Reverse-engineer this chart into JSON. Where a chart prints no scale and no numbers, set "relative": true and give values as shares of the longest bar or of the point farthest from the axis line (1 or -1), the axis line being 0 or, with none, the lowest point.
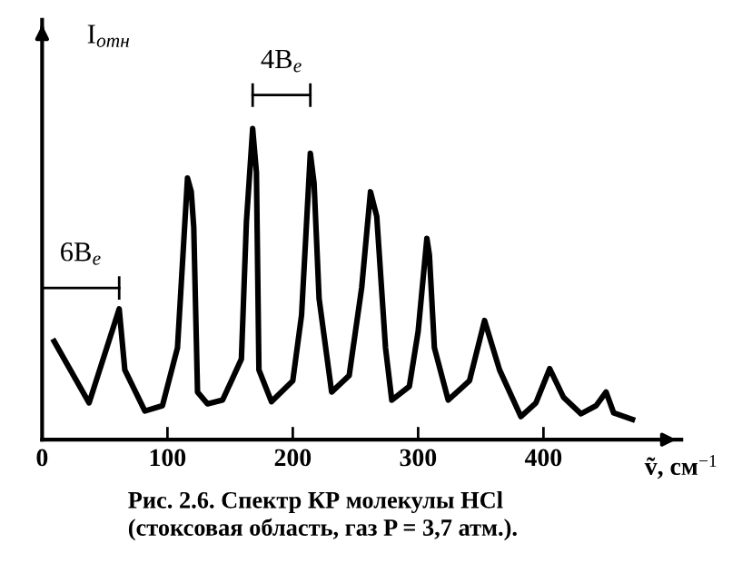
{
  "chart_data": {
    "type": "line",
    "relative": true,
    "xlabel": "ṽ, см$^{−1}$",
    "ylabel": "I$_{отн}$",
    "x": [
      9.6,
      37.5,
      61.5,
      66,
      82,
      96,
      108,
      116,
      119,
      121,
      124,
      132,
      144,
      159,
      163,
      168,
      171,
      173,
      183,
      200,
      207,
      214,
      217,
      221,
      231,
      245,
      255,
      262,
      267,
      274,
      279,
      293,
      300,
      307,
      309,
      313,
      324,
      341,
      353,
      365,
      382,
      394,
      405,
      416,
      430,
      442,
      450,
      456,
      471
    ],
    "series": [
      {
        "color": "#000000",
        "values": [
          0.316,
          0.118,
          0.42,
          0.224,
          0.092,
          0.109,
          0.295,
          0.841,
          0.797,
          0.683,
          0.153,
          0.115,
          0.127,
          0.259,
          0.7,
          1.0,
          0.859,
          0.224,
          0.122,
          0.189,
          0.4,
          0.921,
          0.824,
          0.453,
          0.153,
          0.206,
          0.489,
          0.797,
          0.718,
          0.295,
          0.127,
          0.171,
          0.347,
          0.647,
          0.594,
          0.295,
          0.127,
          0.189,
          0.383,
          0.224,
          0.074,
          0.118,
          0.228,
          0.136,
          0.083,
          0.109,
          0.153,
          0.086,
          0.065
        ]
      }
    ],
    "xlim": [
      0,
      510
    ],
    "xticks": [
      0,
      100,
      200,
      300,
      400
    ],
    "tick_labels": "x",
    "grid": false,
    "marker": "none",
    "line_style": "solid",
    "annotations": [
      "6B$_{e}$",
      "4B$_{e}$",
      "Рис. 2.6. Спектр КР молекулы HCl\n(стоксовая область, газ P = 3,7 атм.)."
    ]
  }
}
